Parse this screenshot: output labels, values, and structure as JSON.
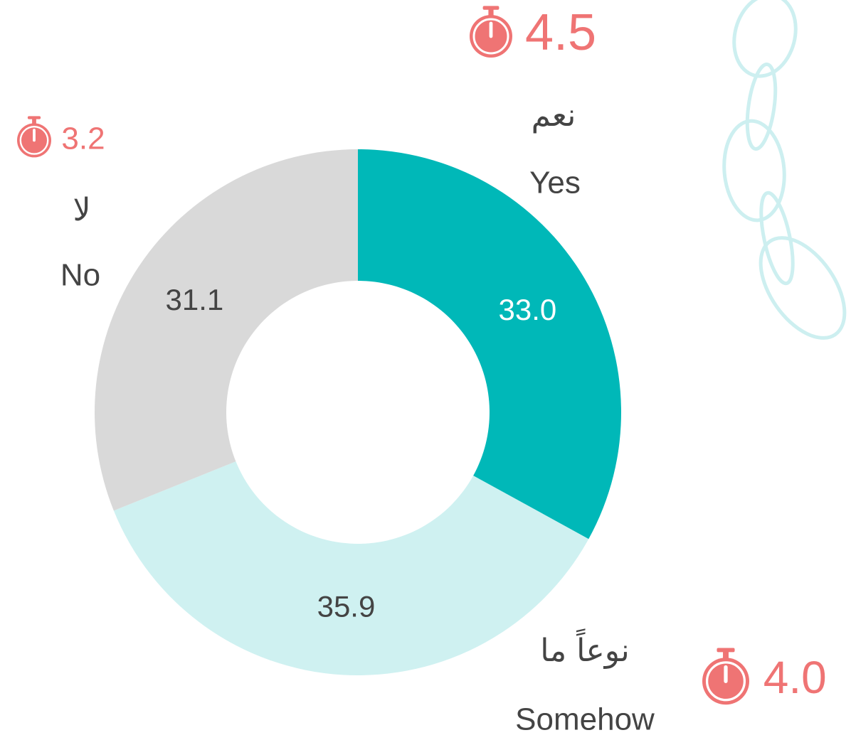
{
  "chart_data": {
    "type": "donut",
    "categories": [
      "Yes",
      "Somehow",
      "No"
    ],
    "categories_ar": [
      "نعم",
      "نوعاً ما",
      "لا"
    ],
    "values": [
      33.0,
      35.9,
      31.1
    ],
    "value_labels": [
      "33.0",
      "35.9",
      "31.1"
    ],
    "colors": [
      "#00b8b8",
      "#cff1f1",
      "#d9d9d9"
    ],
    "scores": [
      4.5,
      4.0,
      3.2
    ],
    "score_labels": [
      "4.5",
      "4.0",
      "3.2"
    ],
    "score_color": "#ef7474"
  }
}
